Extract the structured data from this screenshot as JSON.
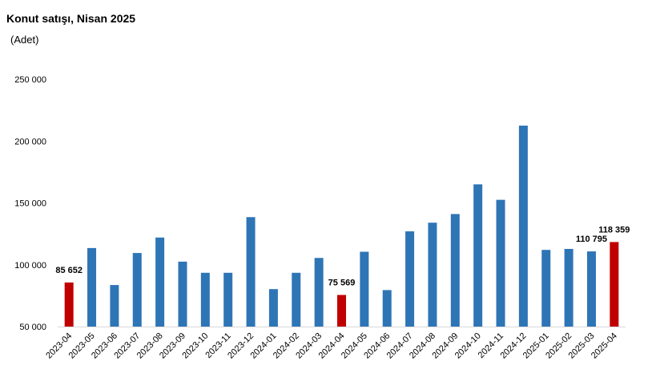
{
  "chart_data": {
    "type": "bar",
    "title": "Konut satışı, Nisan 2025",
    "subtitle": "(Adet)",
    "categories": [
      "2023-04",
      "2023-05",
      "2023-06",
      "2023-07",
      "2023-08",
      "2023-09",
      "2023-10",
      "2023-11",
      "2023-12",
      "2024-01",
      "2024-02",
      "2024-03",
      "2024-04",
      "2024-05",
      "2024-06",
      "2024-07",
      "2024-08",
      "2024-09",
      "2024-10",
      "2024-11",
      "2024-12",
      "2025-01",
      "2025-02",
      "2025-03",
      "2025-04"
    ],
    "values": [
      85652,
      113500,
      83600,
      109500,
      122000,
      102500,
      93500,
      93500,
      138500,
      80300,
      93500,
      105500,
      75569,
      110500,
      79500,
      127000,
      134000,
      141000,
      165000,
      152500,
      212500,
      112000,
      112800,
      110795,
      118359
    ],
    "highlighted": [
      "2023-04",
      "2024-04",
      "2025-04"
    ],
    "data_labels": [
      {
        "category": "2023-04",
        "text": "85 652"
      },
      {
        "category": "2024-04",
        "text": "75 569"
      },
      {
        "category": "2025-03",
        "text": "110 795"
      },
      {
        "category": "2025-04",
        "text": "118 359"
      }
    ],
    "yticks": [
      {
        "value": 50000,
        "label": "50 000"
      },
      {
        "value": 100000,
        "label": "100 000"
      },
      {
        "value": 150000,
        "label": "150 000"
      },
      {
        "value": 200000,
        "label": "200 000"
      },
      {
        "value": 250000,
        "label": "250 000"
      }
    ],
    "ylim": [
      50000,
      250000
    ],
    "colors": {
      "bar": "#2e75b6",
      "highlight": "#c00000",
      "axis": "#d9d9d9"
    },
    "grid": false,
    "legend": "none"
  }
}
